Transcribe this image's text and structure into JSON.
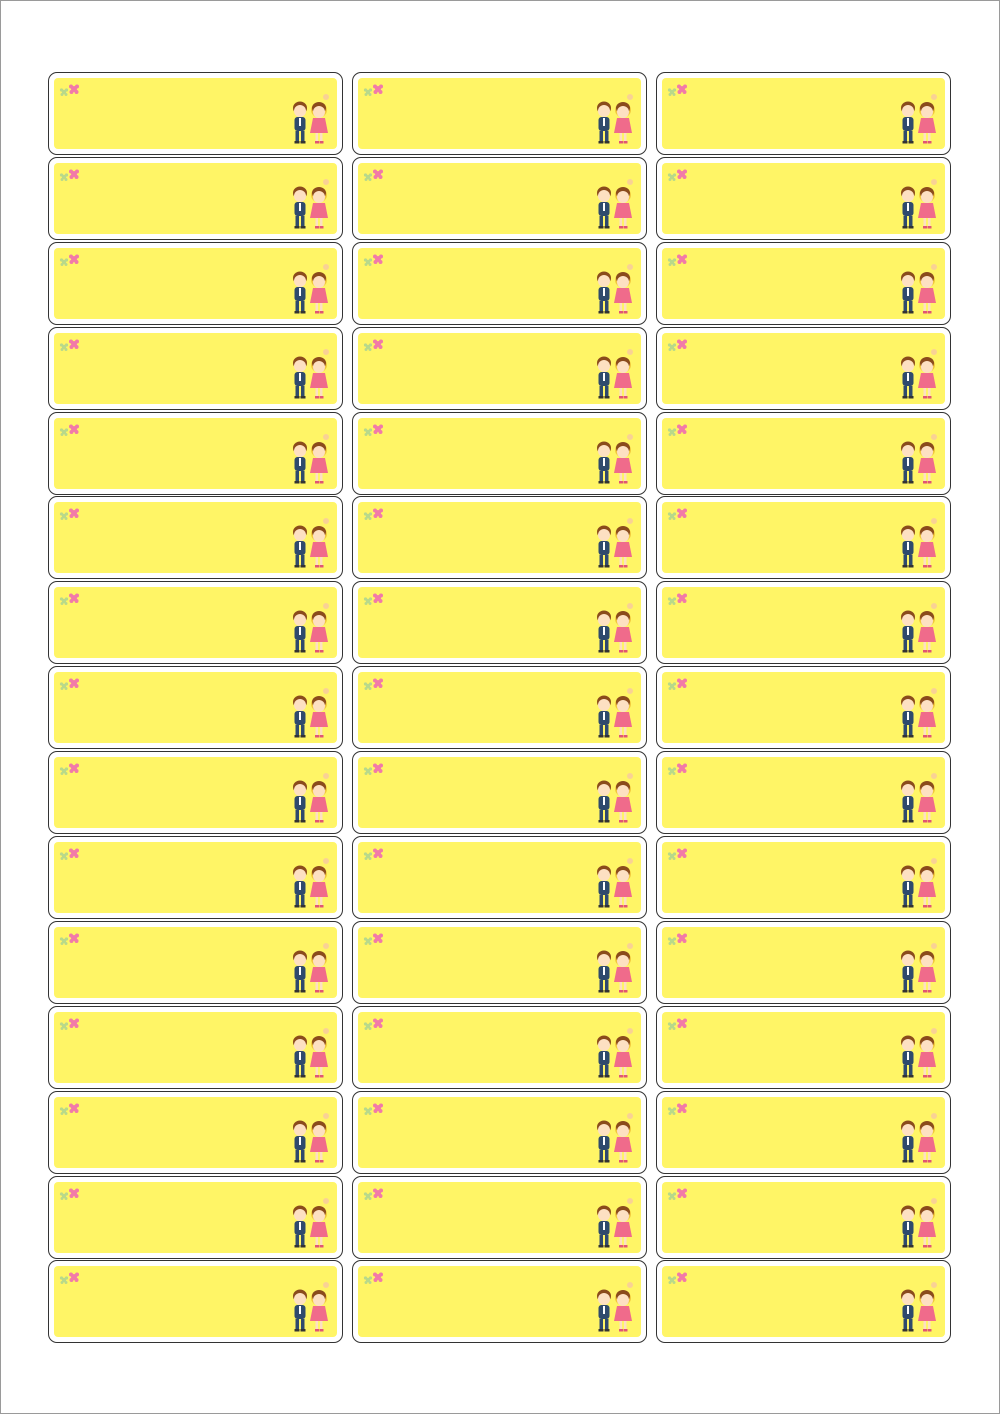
{
  "sheet": {
    "columns": 3,
    "rows": 15,
    "label_fill": "#fff566",
    "label_border": "#333333",
    "decoration_icon": "flower-icon",
    "illustration_icon": "school-children-icon"
  }
}
